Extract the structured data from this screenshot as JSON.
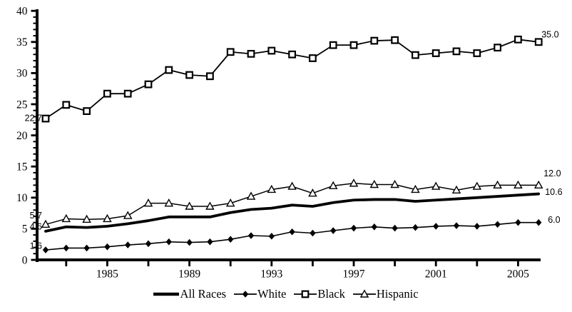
{
  "chart_data": {
    "type": "line",
    "title": "",
    "xlabel": "",
    "ylabel": "",
    "x": [
      1982,
      1983,
      1984,
      1985,
      1986,
      1987,
      1988,
      1989,
      1990,
      1991,
      1992,
      1993,
      1994,
      1995,
      1996,
      1997,
      1998,
      1999,
      2000,
      2001,
      2002,
      2003,
      2004,
      2005,
      2006
    ],
    "ylim": [
      0,
      40
    ],
    "y_major_ticks": [
      0,
      5,
      10,
      15,
      20,
      25,
      30,
      35,
      40
    ],
    "y_tick_labels": [
      "0",
      "5",
      "10",
      "15",
      "20",
      "25",
      "30",
      "35",
      "40"
    ],
    "y_minor_step": 1,
    "x_tick_years": [
      1983,
      1985,
      1987,
      1989,
      1991,
      1993,
      1995,
      1997,
      1999,
      2001,
      2003,
      2005
    ],
    "x_label_years": [
      1985,
      1989,
      1993,
      1997,
      2001,
      2005
    ],
    "x_tick_label_texts": [
      "1985",
      "1989",
      "1993",
      "1997",
      "2001",
      "2005"
    ],
    "grid": false,
    "legend_position": "bottom",
    "series": [
      {
        "name": "All Races",
        "marker": "none",
        "line_width": 3.8,
        "start_label": "4.6",
        "end_label": "10.6",
        "values": [
          4.6,
          5.3,
          5.2,
          5.4,
          5.8,
          6.3,
          6.9,
          6.9,
          6.9,
          7.6,
          8.1,
          8.3,
          8.8,
          8.6,
          9.2,
          9.6,
          9.7,
          9.7,
          9.4,
          9.6,
          9.8,
          10.0,
          10.2,
          10.4,
          10.6
        ]
      },
      {
        "name": "White",
        "marker": "diamond-filled",
        "line_width": 1.6,
        "start_label": "1.6",
        "end_label": "6.0",
        "values": [
          1.6,
          1.9,
          1.9,
          2.1,
          2.4,
          2.6,
          2.9,
          2.8,
          2.9,
          3.3,
          3.9,
          3.8,
          4.5,
          4.3,
          4.7,
          5.1,
          5.3,
          5.1,
          5.2,
          5.4,
          5.5,
          5.4,
          5.7,
          6.0,
          6.0
        ]
      },
      {
        "name": "Black",
        "marker": "square-open",
        "line_width": 1.8,
        "start_label": "22.7",
        "end_label": "35.0",
        "values": [
          22.7,
          24.9,
          23.9,
          26.7,
          26.7,
          28.2,
          30.5,
          29.7,
          29.5,
          33.4,
          33.1,
          33.6,
          33.0,
          32.4,
          34.5,
          34.5,
          35.2,
          35.3,
          32.9,
          33.2,
          33.5,
          33.2,
          34.1,
          35.4,
          35.0
        ]
      },
      {
        "name": "Hispanic",
        "marker": "triangle-open",
        "line_width": 1.5,
        "start_label": "5.7",
        "end_label": "12.0",
        "values": [
          5.7,
          6.6,
          6.5,
          6.6,
          7.1,
          9.1,
          9.1,
          8.6,
          8.6,
          9.1,
          10.2,
          11.3,
          11.8,
          10.7,
          11.9,
          12.3,
          12.1,
          12.1,
          11.3,
          11.8,
          11.2,
          11.8,
          12.0,
          12.0,
          12.0
        ]
      }
    ],
    "colors": {
      "line": "#000000",
      "text": "#000000",
      "background": "#ffffff",
      "marker_fill_open": "#ffffff"
    }
  }
}
